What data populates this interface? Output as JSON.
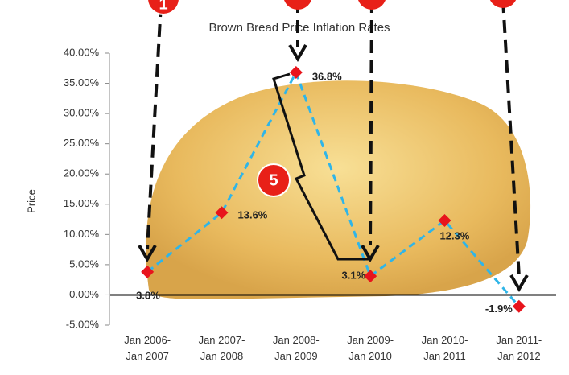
{
  "chart_data": {
    "type": "line",
    "title": "Brown Bread Price Inflation Rates",
    "y_label": "Price",
    "categories": [
      "Jan 2006-\nJan 2007",
      "Jan 2007-\nJan 2008",
      "Jan 2008-\nJan 2009",
      "Jan 2009-\nJan 2010",
      "Jan 2010-\nJan 2011",
      "Jan 2011-\nJan 2012"
    ],
    "series": [
      {
        "color": "#2fb5e8",
        "values": [
          3.8,
          13.6,
          36.8,
          3.1,
          12.3,
          -1.9
        ],
        "value_labels": [
          "3.8%",
          "13.6%",
          "36.8%",
          "3.1%",
          "12.3%",
          "-1.9%"
        ]
      }
    ],
    "marker_color": "#e8141c",
    "ylim": [
      -5,
      40
    ],
    "yticks": [
      {
        "value": -5,
        "label": "-5.00%"
      },
      {
        "value": 0,
        "label": "0.00%"
      },
      {
        "value": 5,
        "label": "5.00%"
      },
      {
        "value": 10,
        "label": "10.00%"
      },
      {
        "value": 15,
        "label": "15.00%"
      },
      {
        "value": 20,
        "label": "20.00%"
      },
      {
        "value": 25,
        "label": "25.00%"
      },
      {
        "value": 30,
        "label": "30.00%"
      },
      {
        "value": 35,
        "label": "35.00%"
      },
      {
        "value": 40,
        "label": "40.00%"
      }
    ],
    "annotations": [
      "1",
      "5"
    ]
  }
}
